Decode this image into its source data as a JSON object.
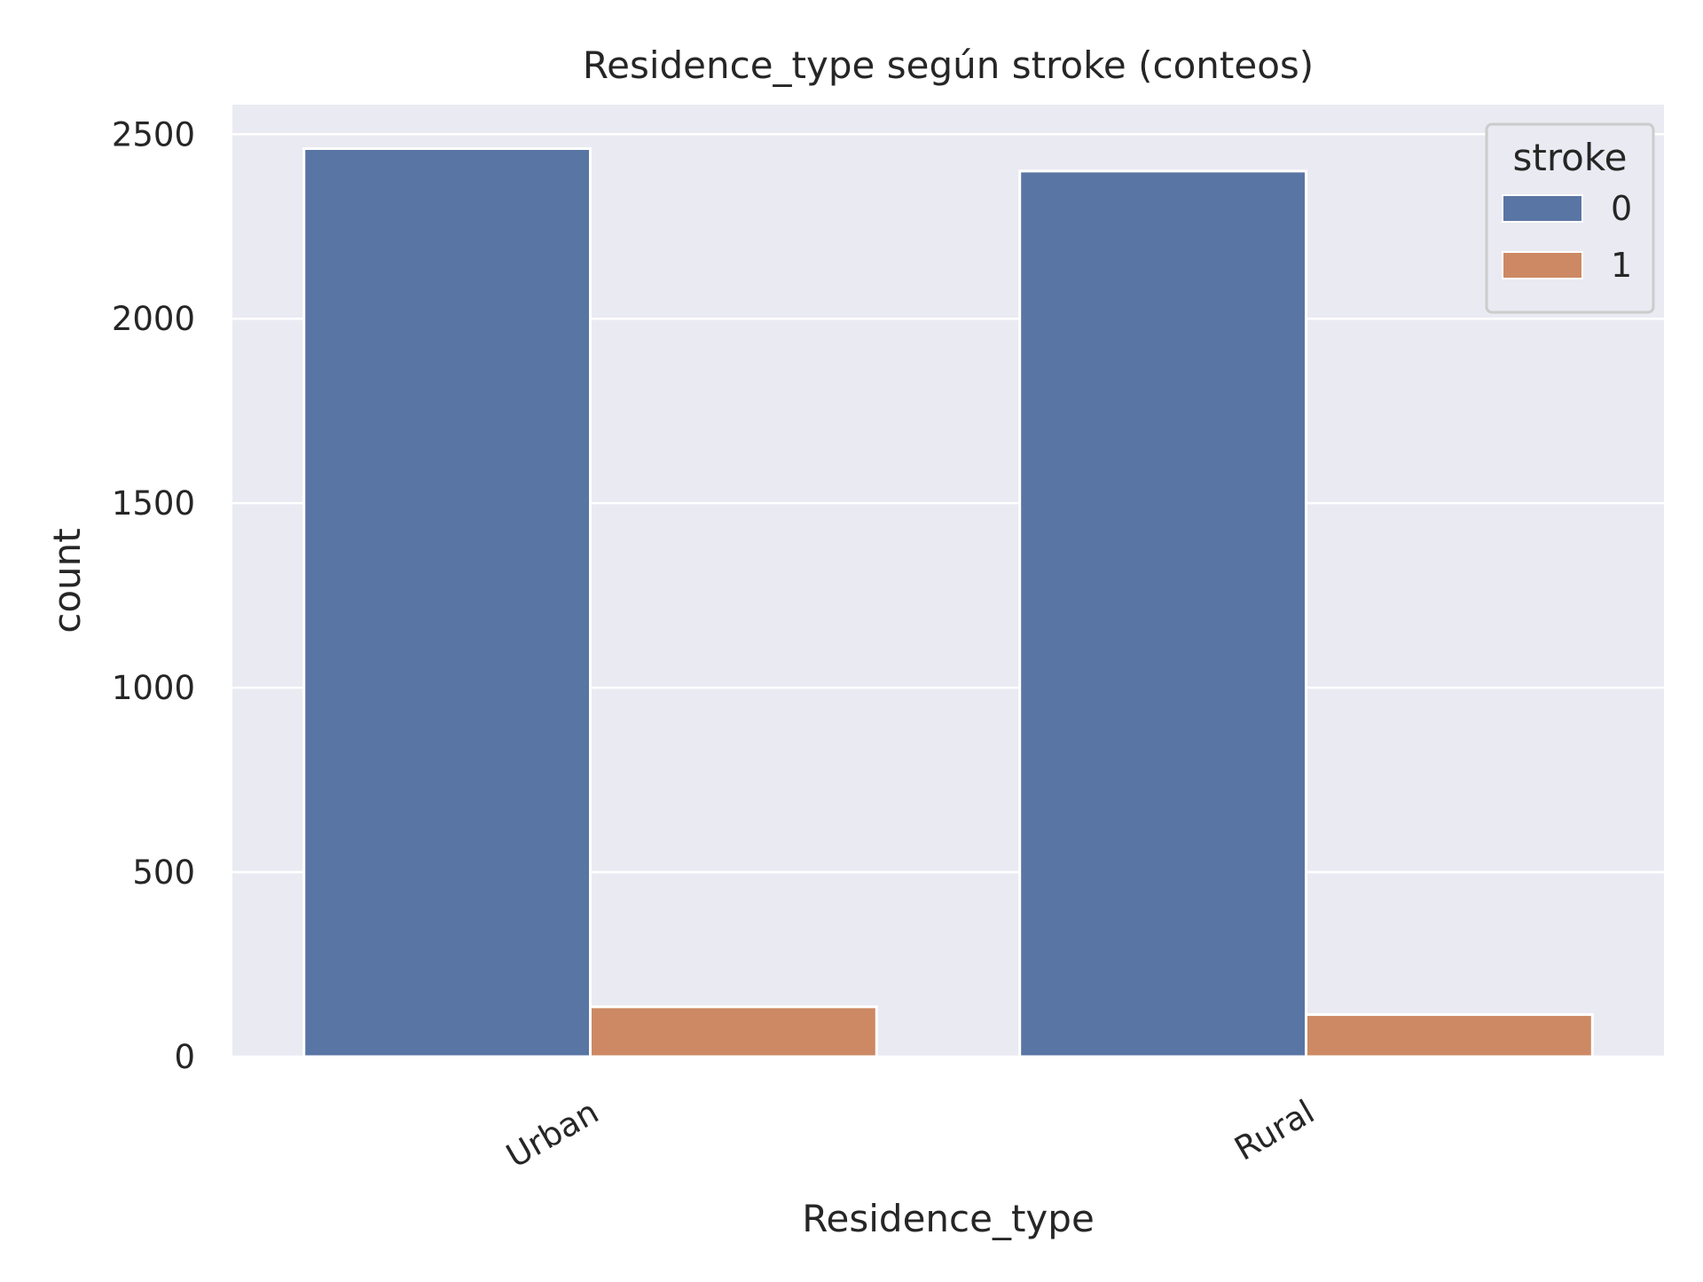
{
  "chart_data": {
    "type": "bar",
    "title": "Residence_type según stroke (conteos)",
    "xlabel": "Residence_type",
    "ylabel": "count",
    "categories": [
      "Urban",
      "Rural"
    ],
    "series": [
      {
        "name": "0",
        "values": [
          2461,
          2400
        ]
      },
      {
        "name": "1",
        "values": [
          135,
          114
        ]
      }
    ],
    "ylim": [
      0,
      2580
    ],
    "yticks": [
      0,
      500,
      1000,
      1500,
      2000,
      2500
    ],
    "grid": true,
    "legend": {
      "title": "stroke",
      "position": "top-right"
    },
    "colors": {
      "0": "#5975a4",
      "1": "#cc8963",
      "plot_background": "#eaeaf2",
      "grid": "#ffffff"
    }
  }
}
